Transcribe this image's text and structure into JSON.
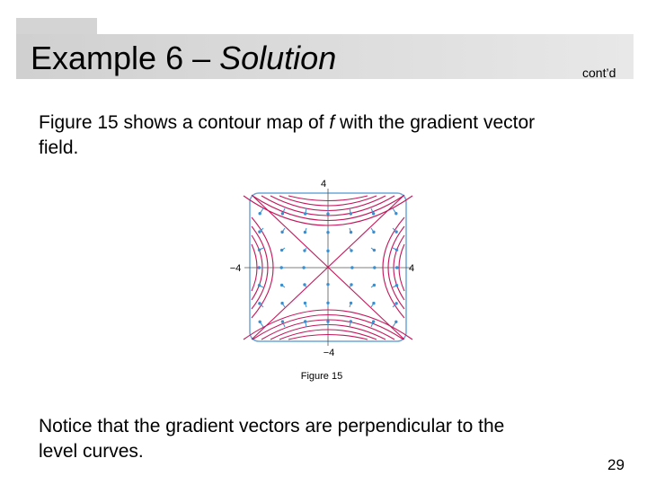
{
  "header": {
    "title": {
      "plain": "Example 6 – ",
      "italic": "Solution"
    },
    "continued": "cont’d"
  },
  "intro": {
    "before": "Figure 15 shows a contour map of ",
    "italic": "f",
    "after": " with the gradient vector",
    "line2": "field."
  },
  "figure": {
    "top_label": "4",
    "left_label": "−4",
    "right_label": "4",
    "bottom_label": "−4",
    "caption": "Figure 15"
  },
  "notice": {
    "line1": "Notice that the gradient vectors are perpendicular to the",
    "line2": "level curves."
  },
  "page_number": "29"
}
